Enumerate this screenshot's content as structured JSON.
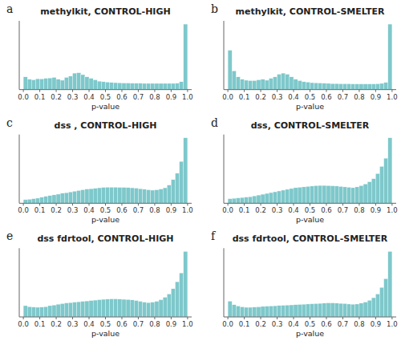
{
  "chart_data": [
    {
      "type": "histogram",
      "title": "methylkit, CONTROL-HIGH",
      "annotations": [
        "a"
      ],
      "x_label": "p-value",
      "color": "#7EC8CB",
      "bins": [
        0,
        0.025,
        0.05,
        0.075,
        0.1,
        0.125,
        0.15,
        0.175,
        0.2,
        0.225,
        0.25,
        0.275,
        0.3,
        0.325,
        0.35,
        0.375,
        0.4,
        0.425,
        0.45,
        0.475,
        0.5,
        0.525,
        0.55,
        0.575,
        0.6,
        0.625,
        0.65,
        0.675,
        0.7,
        0.725,
        0.75,
        0.775,
        0.8,
        0.825,
        0.85,
        0.875,
        0.9,
        0.925,
        0.95,
        0.975,
        1.0
      ],
      "values": [
        0.68,
        0.55,
        0.52,
        0.58,
        0.57,
        0.6,
        0.62,
        0.65,
        0.55,
        0.5,
        0.65,
        0.72,
        0.88,
        0.9,
        0.8,
        0.68,
        0.6,
        0.52,
        0.45,
        0.42,
        0.4,
        0.38,
        0.37,
        0.36,
        0.35,
        0.35,
        0.34,
        0.34,
        0.34,
        0.33,
        0.33,
        0.33,
        0.33,
        0.33,
        0.33,
        0.33,
        0.33,
        0.34,
        0.42,
        3.5
      ],
      "xlim": [
        -0.025,
        1.025
      ],
      "xticks": [
        {
          "value": 0.0,
          "label": "0.0"
        },
        {
          "value": 0.1,
          "label": "0.1"
        },
        {
          "value": 0.2,
          "label": "0.2"
        },
        {
          "value": 0.3,
          "label": "0.3"
        },
        {
          "value": 0.4,
          "label": "0.4"
        },
        {
          "value": 0.5,
          "label": "0.5"
        },
        {
          "value": 0.6,
          "label": "0.6"
        },
        {
          "value": 0.7,
          "label": "0.7"
        },
        {
          "value": 0.8,
          "label": "0.8"
        },
        {
          "value": 0.9,
          "label": "0.9"
        },
        {
          "value": 1.0,
          "label": "1.0"
        }
      ],
      "ylim": [
        0,
        3.675
      ],
      "tick_labels": "x"
    },
    {
      "type": "histogram",
      "title": "methylkit, CONTROL-SMELTER",
      "annotations": [
        "b"
      ],
      "x_label": "p-value",
      "color": "#7EC8CB",
      "bins": [
        0,
        0.025,
        0.05,
        0.075,
        0.1,
        0.125,
        0.15,
        0.175,
        0.2,
        0.225,
        0.25,
        0.275,
        0.3,
        0.325,
        0.35,
        0.375,
        0.4,
        0.425,
        0.45,
        0.475,
        0.5,
        0.525,
        0.55,
        0.575,
        0.6,
        0.625,
        0.65,
        0.675,
        0.7,
        0.725,
        0.75,
        0.775,
        0.8,
        0.825,
        0.85,
        0.875,
        0.9,
        0.925,
        0.95,
        0.975,
        1.0
      ],
      "values": [
        2.1,
        1.0,
        0.68,
        0.55,
        0.5,
        0.48,
        0.48,
        0.52,
        0.55,
        0.5,
        0.6,
        0.68,
        0.82,
        0.88,
        0.82,
        0.68,
        0.55,
        0.48,
        0.42,
        0.4,
        0.37,
        0.36,
        0.35,
        0.34,
        0.33,
        0.32,
        0.32,
        0.31,
        0.31,
        0.31,
        0.3,
        0.3,
        0.3,
        0.3,
        0.3,
        0.3,
        0.31,
        0.33,
        0.38,
        3.5
      ],
      "xlim": [
        -0.025,
        1.025
      ],
      "xticks": [
        {
          "value": 0.0,
          "label": "0.0"
        },
        {
          "value": 0.1,
          "label": "0.1"
        },
        {
          "value": 0.2,
          "label": "0.2"
        },
        {
          "value": 0.3,
          "label": "0.3"
        },
        {
          "value": 0.4,
          "label": "0.4"
        },
        {
          "value": 0.5,
          "label": "0.5"
        },
        {
          "value": 0.6,
          "label": "0.6"
        },
        {
          "value": 0.7,
          "label": "0.7"
        },
        {
          "value": 0.8,
          "label": "0.8"
        },
        {
          "value": 0.9,
          "label": "0.9"
        },
        {
          "value": 1.0,
          "label": "1.0"
        }
      ],
      "ylim": [
        0,
        3.675
      ],
      "tick_labels": "x"
    },
    {
      "type": "histogram",
      "title": "dss , CONTROL-HIGH",
      "annotations": [
        "c"
      ],
      "x_label": "p-value",
      "color": "#7EC8CB",
      "bins": [
        0,
        0.025,
        0.05,
        0.075,
        0.1,
        0.125,
        0.15,
        0.175,
        0.2,
        0.225,
        0.25,
        0.275,
        0.3,
        0.325,
        0.35,
        0.375,
        0.4,
        0.425,
        0.45,
        0.475,
        0.5,
        0.525,
        0.55,
        0.575,
        0.6,
        0.625,
        0.65,
        0.675,
        0.7,
        0.725,
        0.75,
        0.775,
        0.8,
        0.825,
        0.85,
        0.875,
        0.9,
        0.925,
        0.95,
        0.975,
        1.0
      ],
      "values": [
        0.2,
        0.22,
        0.25,
        0.28,
        0.33,
        0.38,
        0.42,
        0.46,
        0.5,
        0.55,
        0.58,
        0.62,
        0.66,
        0.7,
        0.74,
        0.78,
        0.8,
        0.82,
        0.85,
        0.87,
        0.88,
        0.88,
        0.88,
        0.87,
        0.87,
        0.86,
        0.85,
        0.83,
        0.8,
        0.77,
        0.74,
        0.72,
        0.74,
        0.78,
        0.85,
        1.0,
        1.3,
        1.65,
        2.3,
        3.6
      ],
      "xlim": [
        -0.025,
        1.025
      ],
      "xticks": [
        {
          "value": 0.0,
          "label": "0.0"
        },
        {
          "value": 0.1,
          "label": "0.1"
        },
        {
          "value": 0.2,
          "label": "0.2"
        },
        {
          "value": 0.3,
          "label": "0.3"
        },
        {
          "value": 0.4,
          "label": "0.4"
        },
        {
          "value": 0.5,
          "label": "0.5"
        },
        {
          "value": 0.6,
          "label": "0.6"
        },
        {
          "value": 0.7,
          "label": "0.7"
        },
        {
          "value": 0.8,
          "label": "0.8"
        },
        {
          "value": 0.9,
          "label": "0.9"
        },
        {
          "value": 1.0,
          "label": "1.0"
        }
      ],
      "ylim": [
        0,
        3.78
      ],
      "tick_labels": "x"
    },
    {
      "type": "histogram",
      "title": "dss, CONTROL-SMELTER",
      "annotations": [
        "d"
      ],
      "x_label": "p-value",
      "color": "#7EC8CB",
      "bins": [
        0,
        0.025,
        0.05,
        0.075,
        0.1,
        0.125,
        0.15,
        0.175,
        0.2,
        0.225,
        0.25,
        0.275,
        0.3,
        0.325,
        0.35,
        0.375,
        0.4,
        0.425,
        0.45,
        0.475,
        0.5,
        0.525,
        0.55,
        0.575,
        0.6,
        0.625,
        0.65,
        0.675,
        0.7,
        0.725,
        0.75,
        0.775,
        0.8,
        0.825,
        0.85,
        0.875,
        0.9,
        0.925,
        0.95,
        0.975,
        1.0
      ],
      "values": [
        0.22,
        0.24,
        0.26,
        0.28,
        0.3,
        0.32,
        0.36,
        0.4,
        0.44,
        0.48,
        0.52,
        0.56,
        0.6,
        0.64,
        0.68,
        0.72,
        0.76,
        0.78,
        0.8,
        0.82,
        0.84,
        0.86,
        0.87,
        0.87,
        0.86,
        0.85,
        0.84,
        0.82,
        0.8,
        0.78,
        0.76,
        0.8,
        0.86,
        0.94,
        1.05,
        1.2,
        1.45,
        1.8,
        2.2,
        3.2
      ],
      "xlim": [
        -0.025,
        1.025
      ],
      "xticks": [
        {
          "value": 0.0,
          "label": "0.0"
        },
        {
          "value": 0.1,
          "label": "0.1"
        },
        {
          "value": 0.2,
          "label": "0.2"
        },
        {
          "value": 0.3,
          "label": "0.3"
        },
        {
          "value": 0.4,
          "label": "0.4"
        },
        {
          "value": 0.5,
          "label": "0.5"
        },
        {
          "value": 0.6,
          "label": "0.6"
        },
        {
          "value": 0.7,
          "label": "0.7"
        },
        {
          "value": 0.8,
          "label": "0.8"
        },
        {
          "value": 0.9,
          "label": "0.9"
        },
        {
          "value": 1.0,
          "label": "1.0"
        }
      ],
      "ylim": [
        0,
        3.36
      ],
      "tick_labels": "x"
    },
    {
      "type": "histogram",
      "title": "dss fdrtool, CONTROL-HIGH",
      "annotations": [
        "e"
      ],
      "x_label": "p-value",
      "color": "#7EC8CB",
      "bins": [
        0,
        0.025,
        0.05,
        0.075,
        0.1,
        0.125,
        0.15,
        0.175,
        0.2,
        0.225,
        0.25,
        0.275,
        0.3,
        0.325,
        0.35,
        0.375,
        0.4,
        0.425,
        0.45,
        0.475,
        0.5,
        0.525,
        0.55,
        0.575,
        0.6,
        0.625,
        0.65,
        0.675,
        0.7,
        0.725,
        0.75,
        0.775,
        0.8,
        0.825,
        0.85,
        0.875,
        0.9,
        0.925,
        0.95,
        0.975,
        1.0
      ],
      "values": [
        0.55,
        0.5,
        0.48,
        0.47,
        0.48,
        0.5,
        0.55,
        0.58,
        0.62,
        0.65,
        0.68,
        0.7,
        0.72,
        0.74,
        0.76,
        0.78,
        0.8,
        0.82,
        0.84,
        0.86,
        0.87,
        0.88,
        0.88,
        0.87,
        0.86,
        0.85,
        0.83,
        0.8,
        0.76,
        0.72,
        0.7,
        0.72,
        0.76,
        0.84,
        0.96,
        1.12,
        1.38,
        1.72,
        2.15,
        3.2
      ],
      "xlim": [
        -0.025,
        1.025
      ],
      "xticks": [
        {
          "value": 0.0,
          "label": "0.0"
        },
        {
          "value": 0.1,
          "label": "0.1"
        },
        {
          "value": 0.2,
          "label": "0.2"
        },
        {
          "value": 0.3,
          "label": "0.3"
        },
        {
          "value": 0.4,
          "label": "0.4"
        },
        {
          "value": 0.5,
          "label": "0.5"
        },
        {
          "value": 0.6,
          "label": "0.6"
        },
        {
          "value": 0.7,
          "label": "0.7"
        },
        {
          "value": 0.8,
          "label": "0.8"
        },
        {
          "value": 0.9,
          "label": "0.9"
        },
        {
          "value": 1.0,
          "label": "1.0"
        }
      ],
      "ylim": [
        0,
        3.36
      ],
      "tick_labels": "x"
    },
    {
      "type": "histogram",
      "title": "dss fdrtool, CONTROL-SMELTER",
      "annotations": [
        "f"
      ],
      "x_label": "p-value",
      "color": "#7EC8CB",
      "bins": [
        0,
        0.025,
        0.05,
        0.075,
        0.1,
        0.125,
        0.15,
        0.175,
        0.2,
        0.225,
        0.25,
        0.275,
        0.3,
        0.325,
        0.35,
        0.375,
        0.4,
        0.425,
        0.45,
        0.475,
        0.5,
        0.525,
        0.55,
        0.575,
        0.6,
        0.625,
        0.65,
        0.675,
        0.7,
        0.725,
        0.75,
        0.775,
        0.8,
        0.825,
        0.85,
        0.875,
        0.9,
        0.925,
        0.95,
        0.975,
        1.0
      ],
      "values": [
        0.72,
        0.56,
        0.5,
        0.46,
        0.44,
        0.44,
        0.45,
        0.46,
        0.48,
        0.49,
        0.5,
        0.51,
        0.52,
        0.53,
        0.54,
        0.55,
        0.56,
        0.57,
        0.58,
        0.59,
        0.6,
        0.61,
        0.62,
        0.63,
        0.64,
        0.64,
        0.63,
        0.62,
        0.61,
        0.59,
        0.58,
        0.59,
        0.63,
        0.68,
        0.76,
        0.88,
        1.05,
        1.35,
        1.75,
        3.0
      ],
      "xlim": [
        -0.025,
        1.025
      ],
      "xticks": [
        {
          "value": 0.0,
          "label": "0.0"
        },
        {
          "value": 0.1,
          "label": "0.1"
        },
        {
          "value": 0.2,
          "label": "0.2"
        },
        {
          "value": 0.3,
          "label": "0.3"
        },
        {
          "value": 0.4,
          "label": "0.4"
        },
        {
          "value": 0.5,
          "label": "0.5"
        },
        {
          "value": 0.6,
          "label": "0.6"
        },
        {
          "value": 0.7,
          "label": "0.7"
        },
        {
          "value": 0.8,
          "label": "0.8"
        },
        {
          "value": 0.9,
          "label": "0.9"
        },
        {
          "value": 1.0,
          "label": "1.0"
        }
      ],
      "ylim": [
        0,
        3.15
      ],
      "tick_labels": "x"
    }
  ]
}
